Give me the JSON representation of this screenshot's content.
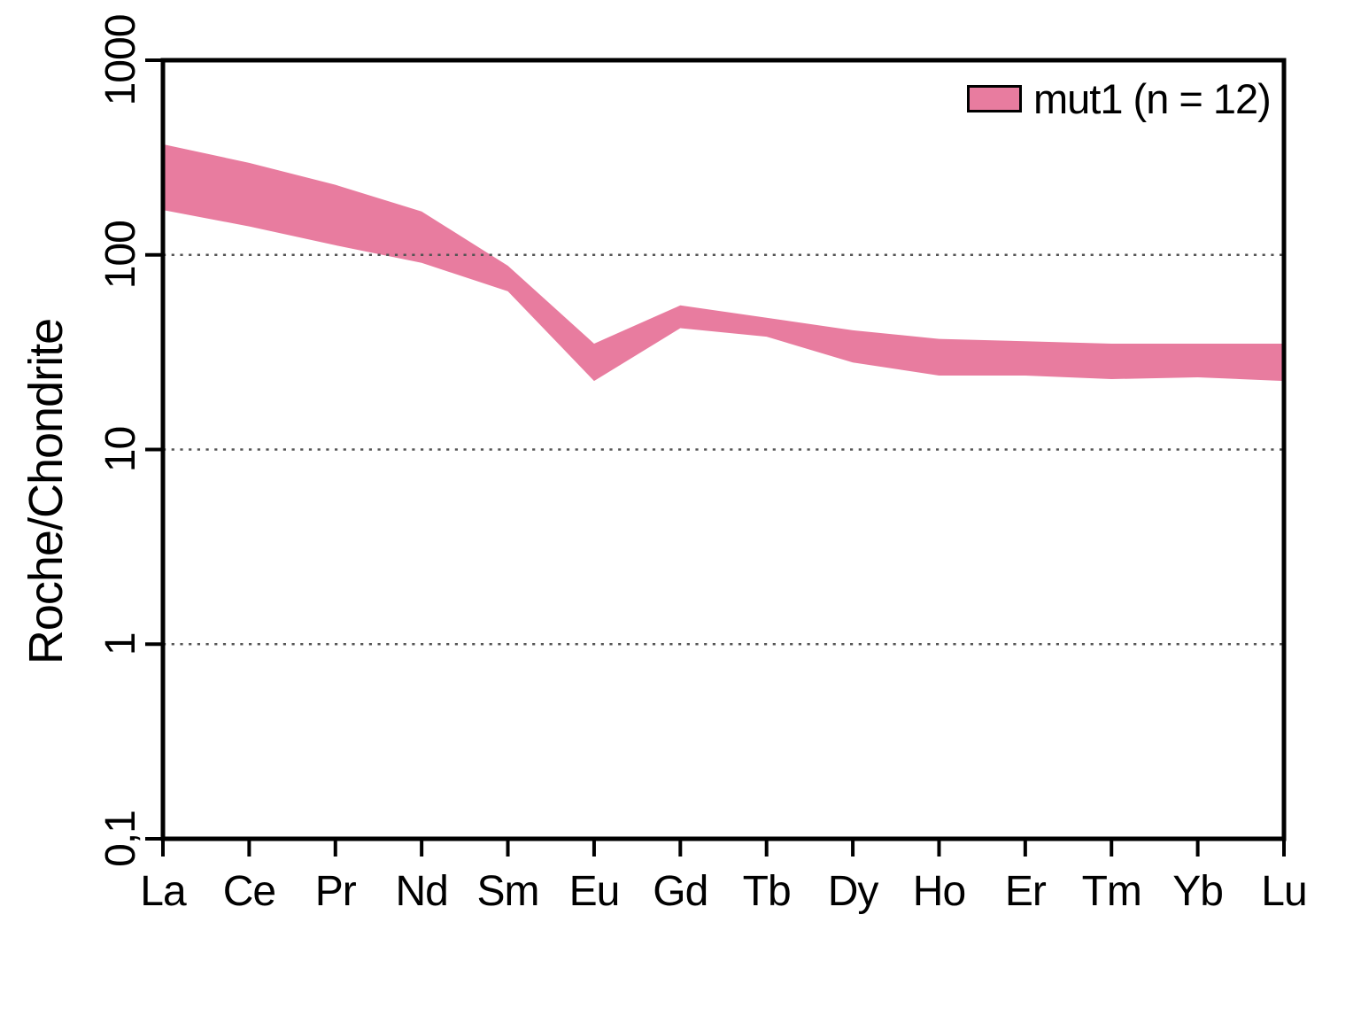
{
  "legend": {
    "label": "mut1 (n = 12)",
    "swatch_color": "#E87C9F"
  },
  "colors": {
    "band": "#E87C9F",
    "axis": "#000000",
    "grid": "#555555",
    "background": "#FFFFFF",
    "text": "#000000"
  },
  "chart_data": {
    "type": "area",
    "subtype": "band-envelope",
    "title": "",
    "xlabel": "",
    "ylabel": "Roche/Chondrite",
    "x_categories": [
      "La",
      "Ce",
      "Pr",
      "Nd",
      "Sm",
      "Eu",
      "Gd",
      "Tb",
      "Dy",
      "Ho",
      "Er",
      "Tm",
      "Yb",
      "Lu"
    ],
    "y_scale": "log",
    "ylim": [
      0.1,
      1000
    ],
    "y_ticks": [
      {
        "value": 1000,
        "label": "1000"
      },
      {
        "value": 100,
        "label": "100"
      },
      {
        "value": 10,
        "label": "10"
      },
      {
        "value": 1,
        "label": "1"
      },
      {
        "value": 0.1,
        "label": "0,1"
      }
    ],
    "gridline_values": [
      100,
      10,
      1
    ],
    "grid_style": "dotted",
    "legend_position": "top-right",
    "series": [
      {
        "name": "mut1 (n = 12)",
        "n_samples": 12,
        "color": "#E87C9F",
        "upper": [
          370,
          297,
          229,
          167,
          88,
          35,
          55,
          47.5,
          41,
          37,
          36,
          35,
          35,
          35
        ],
        "lower": [
          170,
          140,
          112,
          91,
          65,
          22.5,
          42,
          38,
          28,
          24,
          24,
          23,
          23.5,
          22.5
        ]
      }
    ]
  }
}
